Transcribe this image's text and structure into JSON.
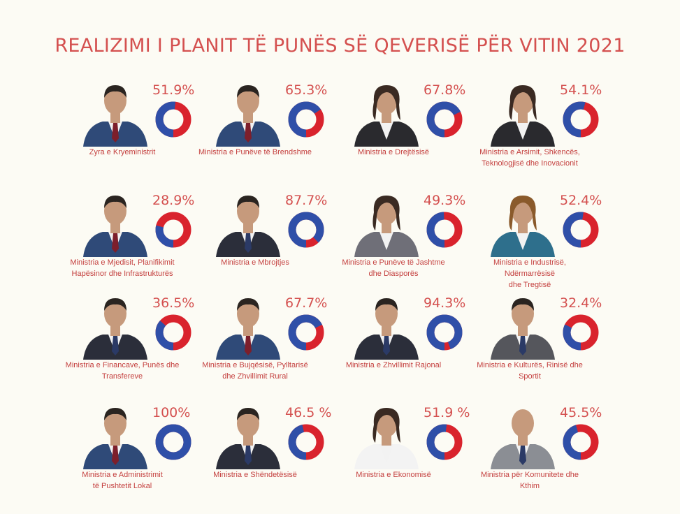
{
  "title": "REALIZIMI I PLANIT TË PUNËS SË QEVERISË PËR VITIN 2021",
  "colors": {
    "completed": "#2f4fa8",
    "remaining": "#d9232d",
    "text": "#d4504f",
    "background": "#fcfbf4",
    "skin": "#c69a7c",
    "suit_dark": "#2b2e3a",
    "suit_blue": "#2f4a78"
  },
  "chart_data": {
    "type": "pie",
    "donut": true,
    "title": "REALIZIMI I PLANIT TË PUNËS SË QEVERISË PËR VITIN 2021",
    "categories": [
      "Zyra e Kryeministrit",
      "Ministria e Punëve të Brendshme",
      "Ministria e Drejtësisë",
      "Ministria e Arsimit, Shkencës, Teknologjisë dhe Inovacionit",
      "Ministria e Mjedisit, Planifikimit Hapësinor dhe Infrastrukturës",
      "Ministria e Mbrojtjes",
      "Ministria e Punëve të Jashtme dhe Diasporës",
      "Ministria e Industrisë, Ndërmarrësisë dhe Tregtisë",
      "Ministria e Financave, Punës dhe Transfereve",
      "Ministria e Bujqësisë, Pylltarisë dhe Zhvillimit Rural",
      "Ministria e Zhvillimit Rajonal",
      "Ministria e Kulturës, Rinisë dhe Sportit",
      "Ministria e Administrimit të Pushtetit Lokal",
      "Ministria e Shëndetësisë",
      "Ministria e Ekonomisë",
      "Ministria për Komunitete dhe Kthim"
    ],
    "values": [
      51.9,
      65.3,
      67.8,
      54.1,
      28.9,
      87.7,
      49.3,
      52.4,
      36.5,
      67.7,
      94.3,
      32.4,
      100,
      46.5,
      51.9,
      45.5
    ],
    "unit": "%"
  },
  "items": [
    {
      "pct": "51.9%",
      "label": "Zyra e Kryeministrit",
      "value": 51.9,
      "avatar": "man-navy-suit"
    },
    {
      "pct": "65.3%",
      "label": "Ministria e Punëve të Brendshme",
      "value": 65.3,
      "avatar": "man-navy-suit"
    },
    {
      "pct": "67.8%",
      "label": "Ministria e Drejtësisë",
      "value": 67.8,
      "avatar": "woman-dark-blazer"
    },
    {
      "pct": "54.1%",
      "label": "Ministria e Arsimit, Shkencës,\nTeknologjisë dhe Inovacionit",
      "value": 54.1,
      "avatar": "woman-dark-blazer"
    },
    {
      "pct": "28.9%",
      "label": "Ministria e Mjedisit, Planifikimit\nHapësinor dhe Infrastrukturës",
      "value": 28.9,
      "avatar": "man-navy-suit"
    },
    {
      "pct": "87.7%",
      "label": "Ministria e Mbrojtjes",
      "value": 87.7,
      "avatar": "man-dark-suit"
    },
    {
      "pct": "49.3%",
      "label": "Ministria e Punëve të Jashtme\ndhe Diasporës",
      "value": 49.3,
      "avatar": "woman-grey-blazer"
    },
    {
      "pct": "52.4%",
      "label": "Ministria e Industrisë, Ndërmarrësisë\ndhe Tregtisë",
      "value": 52.4,
      "avatar": "woman-teal-blazer"
    },
    {
      "pct": "36.5%",
      "label": "Ministria e Financave, Punës dhe\nTransfereve",
      "value": 36.5,
      "avatar": "man-dark-suit"
    },
    {
      "pct": "67.7%",
      "label": "Ministria e Bujqësisë, Pylltarisë\ndhe Zhvillimit Rural",
      "value": 67.7,
      "avatar": "man-navy-suit"
    },
    {
      "pct": "94.3%",
      "label": "Ministria e Zhvillimit Rajonal",
      "value": 94.3,
      "avatar": "man-dark-suit"
    },
    {
      "pct": "32.4%",
      "label": "Ministria e Kulturës, Rinisë dhe Sportit",
      "value": 32.4,
      "avatar": "man-grey-jacket"
    },
    {
      "pct": "100%",
      "label": "Ministria e Administrimit\ntë Pushtetit Lokal",
      "value": 100,
      "avatar": "man-navy-suit"
    },
    {
      "pct": "46.5 %",
      "label": "Ministria e Shëndetësisë",
      "value": 46.5,
      "avatar": "man-dark-suit"
    },
    {
      "pct": "51.9 %",
      "label": "Ministria  e Ekonomisë",
      "value": 51.9,
      "avatar": "woman-white-blazer"
    },
    {
      "pct": "45.5%",
      "label": "Ministria  për Komunitete dhe Kthim",
      "value": 45.5,
      "avatar": "man-grey-suit"
    }
  ]
}
